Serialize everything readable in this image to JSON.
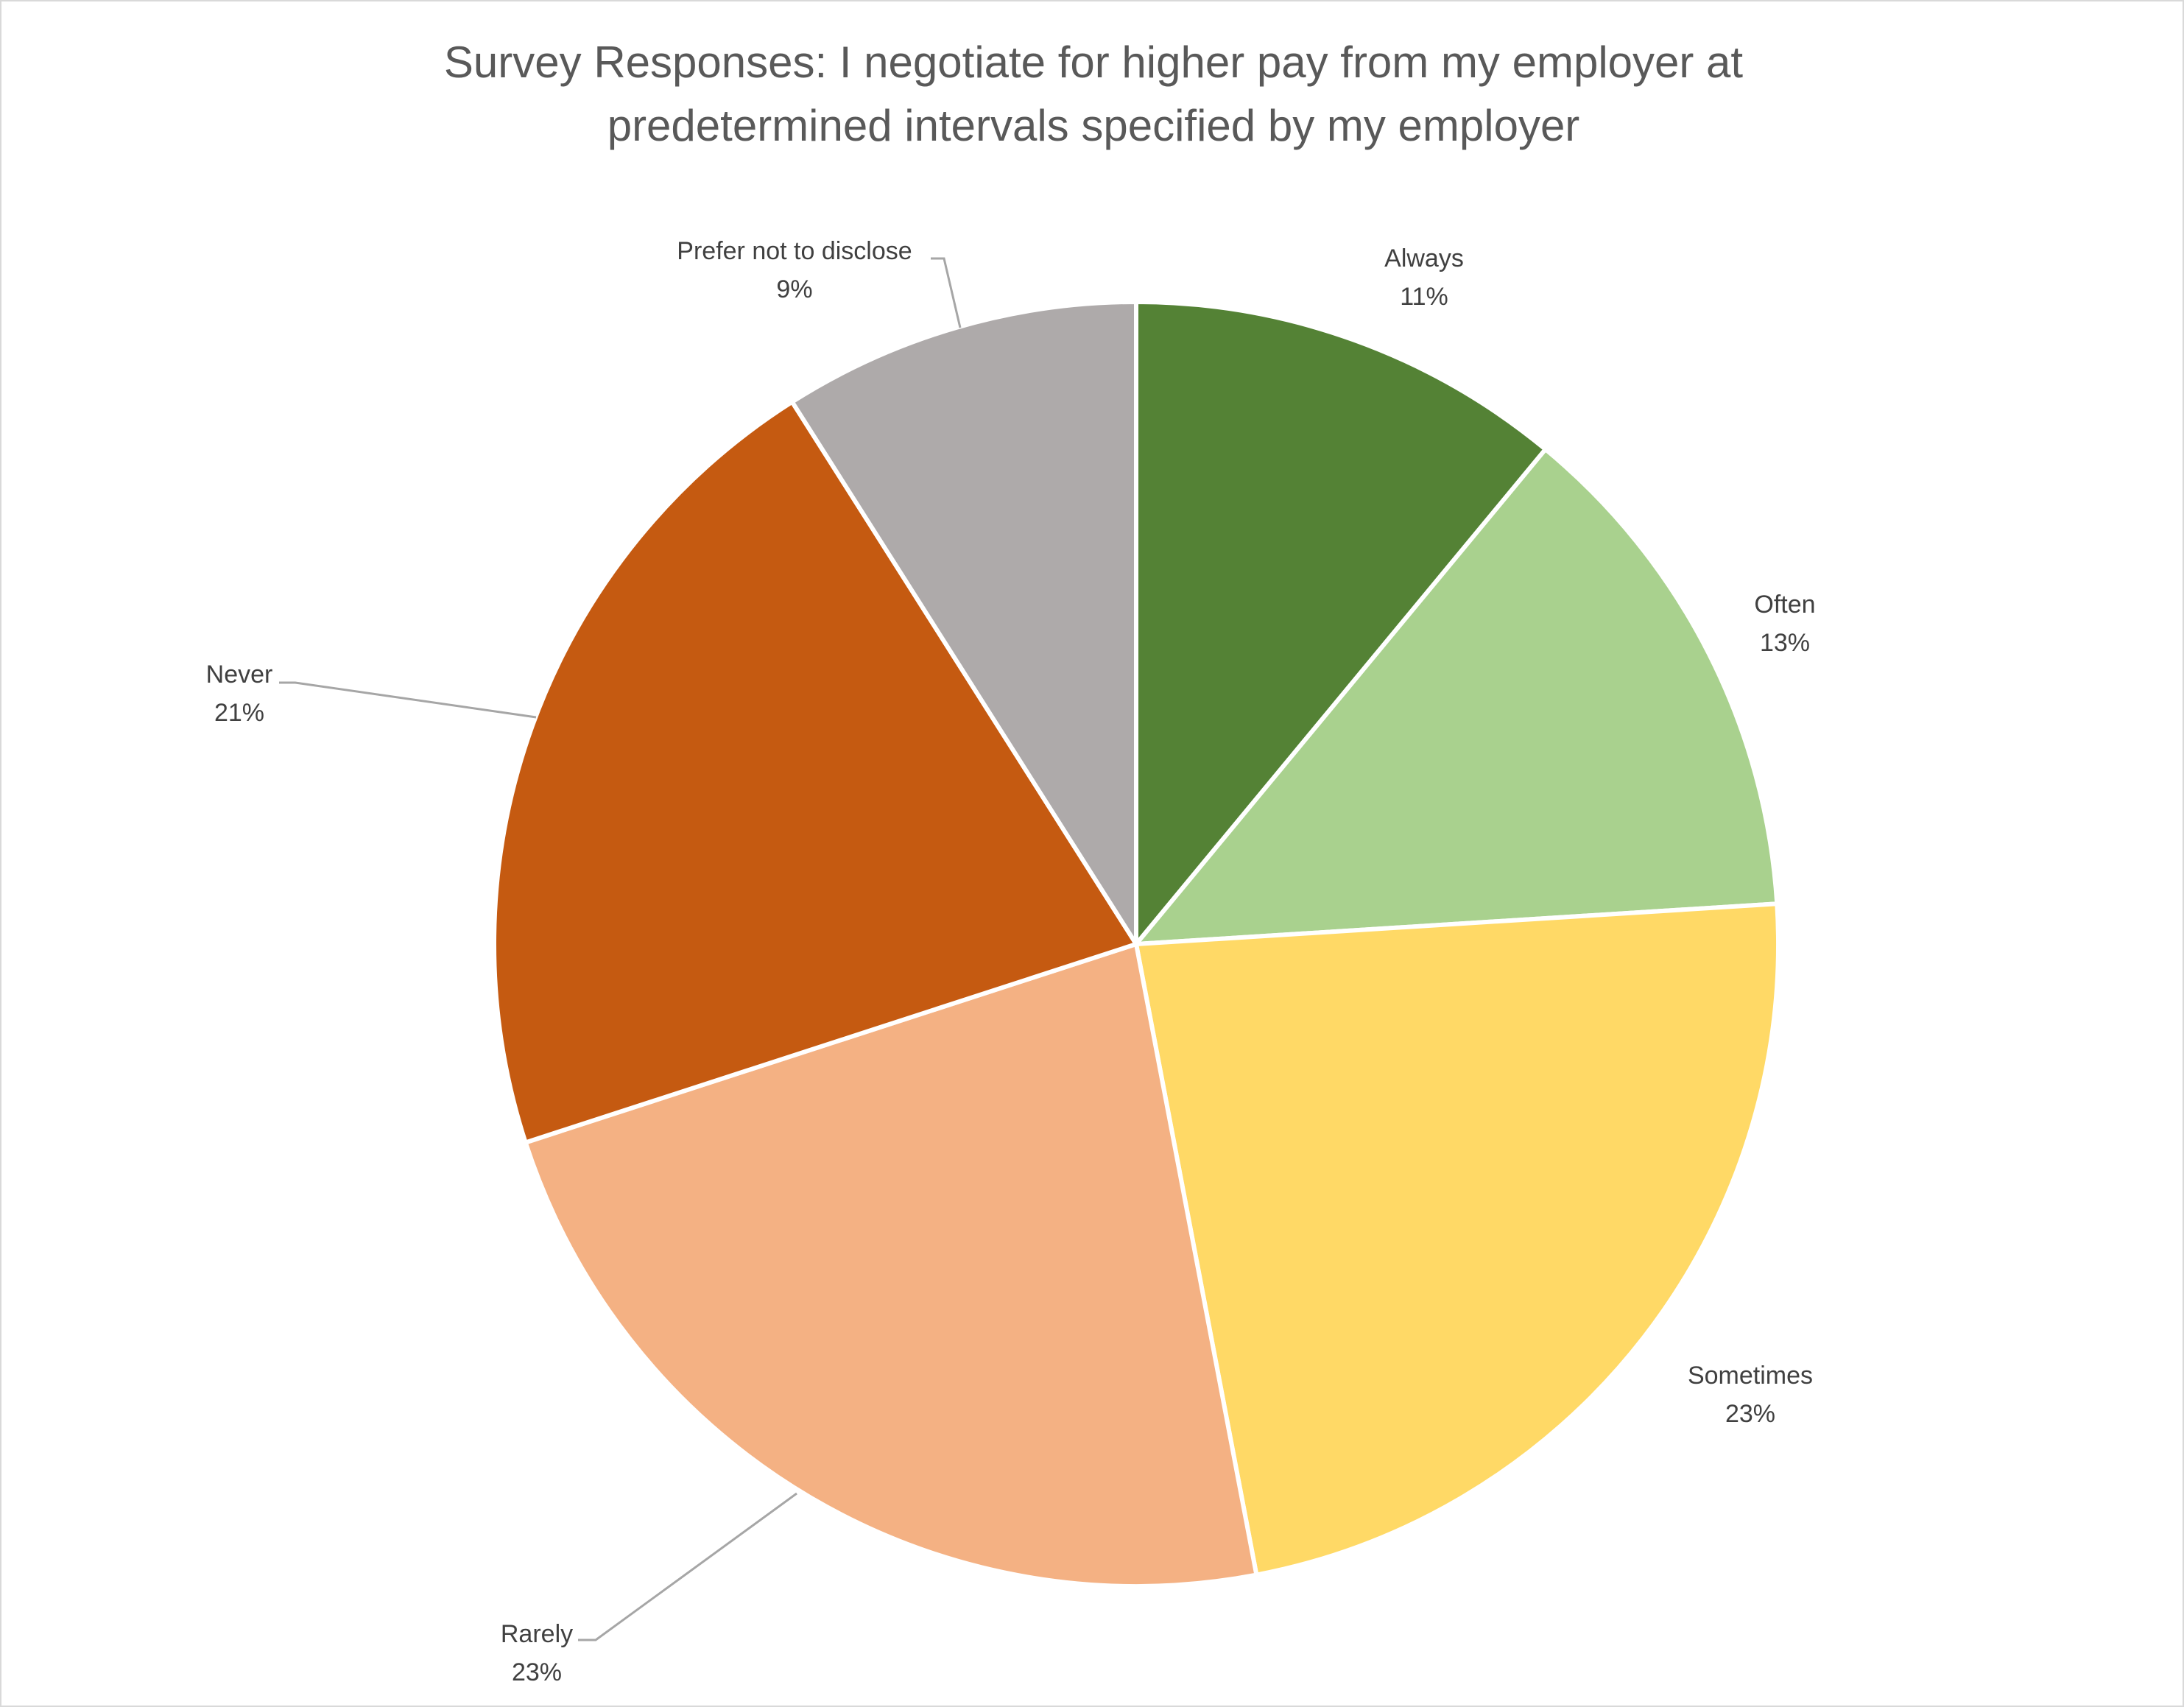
{
  "chart_data": {
    "type": "pie",
    "title_lines": [
      "Survey Responses: I negotiate for higher pay from my employer at",
      "predetermined intervals specified by my employer"
    ],
    "start_angle_deg": 0,
    "direction": "clockwise",
    "slices": [
      {
        "label": "Always",
        "value": 11,
        "value_label": "11%",
        "color": "#548235"
      },
      {
        "label": "Often",
        "value": 13,
        "value_label": "13%",
        "color": "#a9d18e"
      },
      {
        "label": "Sometimes",
        "value": 23,
        "value_label": "23%",
        "color": "#ffd966"
      },
      {
        "label": "Rarely",
        "value": 23,
        "value_label": "23%",
        "color": "#f4b183"
      },
      {
        "label": "Never",
        "value": 21,
        "value_label": "21%",
        "color": "#c55a11"
      },
      {
        "label": "Prefer not to disclose",
        "value": 9,
        "value_label": "9%",
        "color": "#aeaaaa"
      }
    ],
    "legend": false,
    "data_labels": "outside with leader lines"
  }
}
